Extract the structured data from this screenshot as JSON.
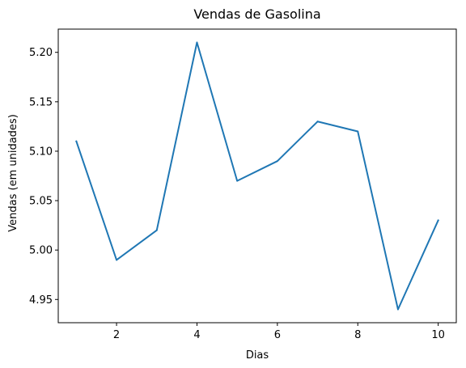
{
  "chart_data": {
    "type": "line",
    "title": "Vendas de Gasolina",
    "xlabel": "Dias",
    "ylabel": "Vendas (em unidades)",
    "x": [
      1,
      2,
      3,
      4,
      5,
      6,
      7,
      8,
      9,
      10
    ],
    "series": [
      {
        "values": [
          5.11,
          4.99,
          5.02,
          5.21,
          5.07,
          5.09,
          5.13,
          5.12,
          4.94,
          5.03
        ],
        "color": "#1f77b4"
      }
    ],
    "xlim": [
      0.55,
      10.45
    ],
    "ylim": [
      4.9265,
      5.2235
    ],
    "xticks": [
      2,
      4,
      6,
      8,
      10
    ],
    "xtick_labels": [
      "2",
      "4",
      "6",
      "8",
      "10"
    ],
    "yticks": [
      4.95,
      5.0,
      5.05,
      5.1,
      5.15,
      5.2
    ],
    "ytick_labels": [
      "4.95",
      "5.00",
      "5.05",
      "5.10",
      "5.15",
      "5.20"
    ],
    "grid": false,
    "legend": false
  }
}
